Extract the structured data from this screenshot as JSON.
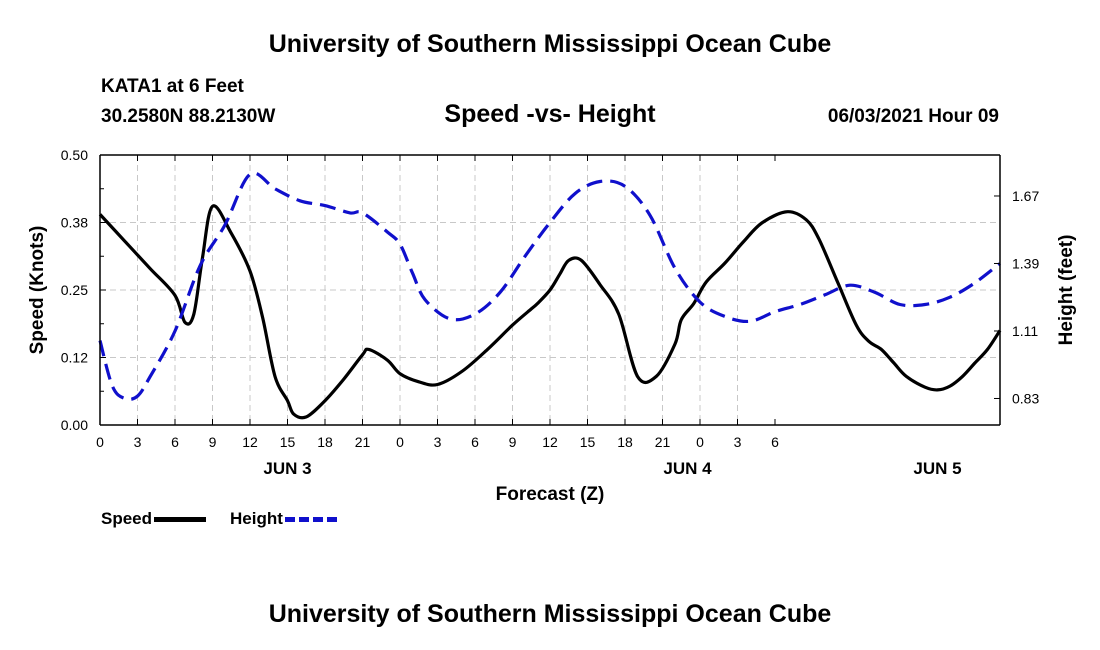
{
  "header": {
    "org_title": "University of Southern Mississippi Ocean Cube",
    "station": "KATA1 at 6 Feet",
    "coordinates": "30.2580N  88.2130W",
    "datetime": "06/03/2021 Hour 09"
  },
  "footer": {
    "org_title": "University of Southern Mississippi Ocean Cube"
  },
  "legend": {
    "speed_label": "Speed",
    "height_label": "Height"
  },
  "colors": {
    "speed": "#000000",
    "height": "#1010cc",
    "grid": "#c8c8c8"
  },
  "chart_data": {
    "type": "line",
    "title": "Speed -vs- Height",
    "xlabel": "Forecast (Z)",
    "ylabel": "Speed (Knots)",
    "y2label": "Height (feet)",
    "x_range_hours": [
      0,
      72
    ],
    "x_tick_step_hours": 3,
    "x_tick_labels": [
      "0",
      "3",
      "6",
      "9",
      "12",
      "15",
      "18",
      "21",
      "0",
      "3",
      "6",
      "9",
      "12",
      "15",
      "18",
      "21",
      "0",
      "3",
      "6"
    ],
    "day_labels": [
      {
        "hour": 15,
        "label": "JUN 3"
      },
      {
        "hour": 47,
        "label": "JUN 4"
      },
      {
        "hour": 67,
        "label": "JUN 5"
      }
    ],
    "ylim": [
      0,
      0.5
    ],
    "y_ticks": [
      "0.00",
      "0.12",
      "0.25",
      "0.38",
      "0.50"
    ],
    "y2lim": [
      0.72,
      1.84
    ],
    "y2_ticks": [
      "0.83",
      "1.11",
      "1.39",
      "1.67"
    ],
    "grid": true,
    "legend_position": "bottom-left",
    "series": [
      {
        "name": "Speed",
        "axis": "left",
        "style": "solid",
        "x": [
          0,
          2,
          4,
          6,
          6.8,
          7.5,
          8.2,
          9,
          10.5,
          12,
          13,
          14,
          15,
          15.5,
          16.5,
          18,
          19.5,
          21,
          21.5,
          23,
          24,
          25.5,
          27,
          29,
          31,
          33,
          34.5,
          35,
          36,
          36.8,
          37.5,
          38.5,
          40,
          41.5,
          43,
          44.5,
          46,
          46.5,
          47.5,
          48.5,
          50,
          51.5,
          53,
          55,
          56.5,
          57.5,
          59,
          60.5,
          61.5,
          62.5,
          63.5,
          64.5,
          66,
          67,
          68,
          69,
          70,
          71,
          72
        ],
        "values": [
          0.39,
          0.34,
          0.29,
          0.24,
          0.19,
          0.205,
          0.31,
          0.405,
          0.355,
          0.285,
          0.2,
          0.09,
          0.045,
          0.02,
          0.015,
          0.045,
          0.085,
          0.13,
          0.14,
          0.12,
          0.095,
          0.08,
          0.075,
          0.1,
          0.14,
          0.185,
          0.215,
          0.225,
          0.25,
          0.28,
          0.305,
          0.305,
          0.26,
          0.205,
          0.09,
          0.09,
          0.15,
          0.195,
          0.225,
          0.265,
          0.3,
          0.34,
          0.375,
          0.395,
          0.38,
          0.345,
          0.265,
          0.185,
          0.155,
          0.14,
          0.115,
          0.09,
          0.07,
          0.065,
          0.072,
          0.09,
          0.115,
          0.14,
          0.175
        ]
      },
      {
        "name": "Height",
        "axis": "right",
        "style": "dashed",
        "x": [
          0,
          1,
          2,
          3,
          4,
          6,
          8,
          10,
          12,
          14,
          16,
          18,
          20,
          21,
          23,
          24,
          25,
          26,
          28,
          30,
          32,
          34,
          36,
          38,
          40,
          42,
          44,
          46,
          48,
          50,
          52,
          54,
          56,
          58,
          60,
          62,
          64,
          66,
          68,
          70,
          72
        ],
        "values": [
          1.07,
          0.88,
          0.83,
          0.84,
          0.92,
          1.11,
          1.38,
          1.55,
          1.76,
          1.7,
          1.65,
          1.63,
          1.6,
          1.6,
          1.52,
          1.47,
          1.35,
          1.24,
          1.16,
          1.18,
          1.27,
          1.42,
          1.56,
          1.68,
          1.73,
          1.71,
          1.59,
          1.37,
          1.23,
          1.17,
          1.15,
          1.19,
          1.22,
          1.26,
          1.3,
          1.27,
          1.22,
          1.22,
          1.25,
          1.31,
          1.39
        ]
      }
    ]
  }
}
